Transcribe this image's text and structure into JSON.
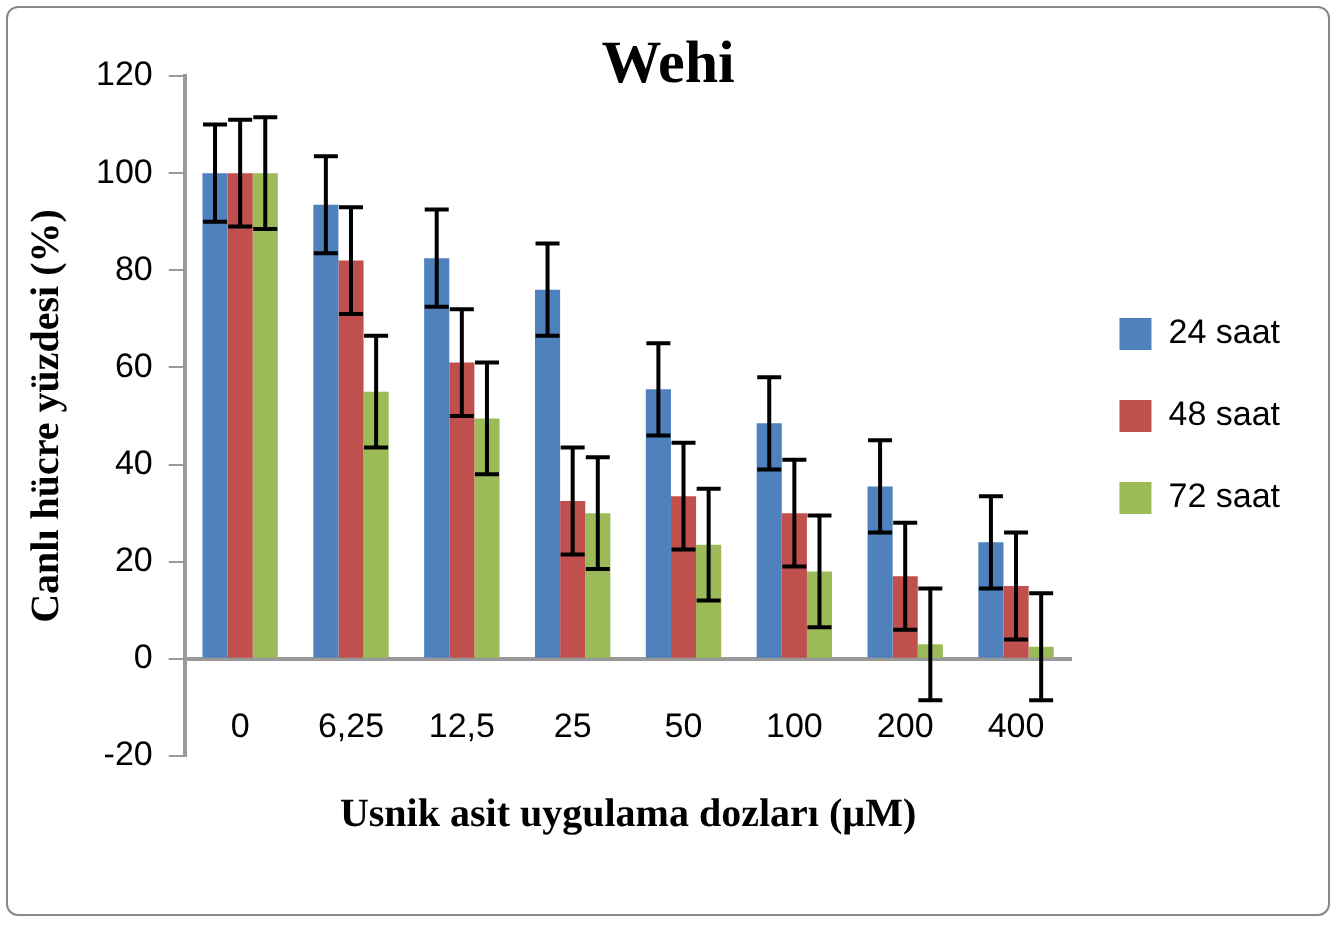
{
  "chart_data": {
    "type": "bar",
    "title": "Wehi",
    "xlabel": "Usnik asit uygulama dozları (µM)",
    "ylabel": "Canlı hücre yüzdesi (%)",
    "categories": [
      "0",
      "6,25",
      "12,5",
      "25",
      "50",
      "100",
      "200",
      "400"
    ],
    "series": [
      {
        "name": "24 saat",
        "color": "#4f81bd",
        "values": [
          100,
          93.5,
          82.5,
          76,
          55.5,
          48.5,
          35.5,
          24
        ],
        "errors": [
          10,
          10,
          10,
          9.5,
          9.5,
          9.5,
          9.5,
          9.5
        ]
      },
      {
        "name": "48 saat",
        "color": "#c0504d",
        "values": [
          100,
          82,
          61,
          32.5,
          33.5,
          30,
          17,
          15
        ],
        "errors": [
          11,
          11,
          11,
          11,
          11,
          11,
          11,
          11
        ]
      },
      {
        "name": "72 saat",
        "color": "#9bbb59",
        "values": [
          100,
          55,
          49.5,
          30,
          23.5,
          18,
          3,
          2.5
        ],
        "errors": [
          11.5,
          11.5,
          11.5,
          11.5,
          11.5,
          11.5,
          11.5,
          11
        ]
      }
    ],
    "ylim": [
      -20,
      120
    ],
    "yticks": [
      -20,
      0,
      20,
      40,
      60,
      80,
      100,
      120
    ],
    "grid": false,
    "legend": "right"
  }
}
